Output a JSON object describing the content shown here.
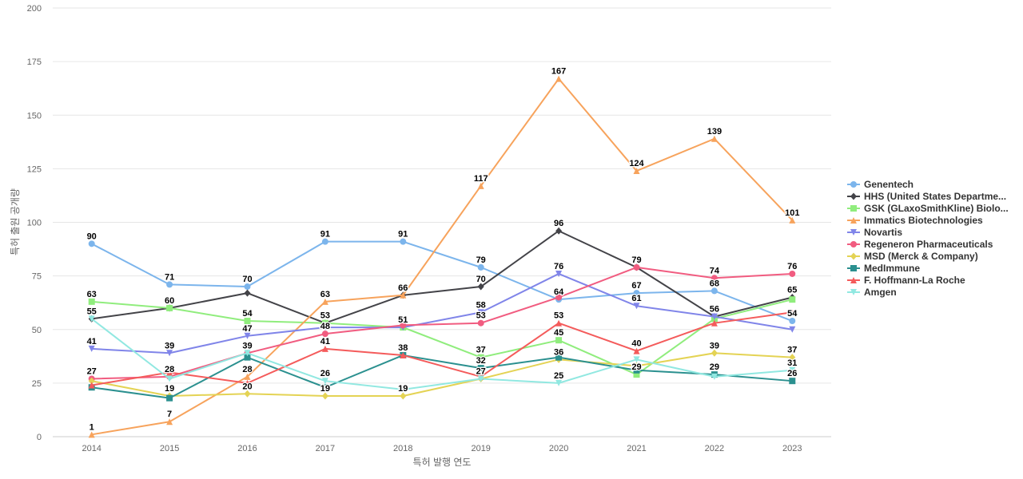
{
  "chart_data": {
    "type": "line",
    "title": "",
    "xlabel": "특허 발행 연도",
    "ylabel": "특허 출원 공개량",
    "ylim": [
      0,
      200
    ],
    "yticks": [
      0,
      25,
      50,
      75,
      100,
      125,
      150,
      175,
      200
    ],
    "grid": true,
    "legend": "right",
    "x": [
      "2014",
      "2015",
      "2016",
      "2017",
      "2018",
      "2019",
      "2020",
      "2021",
      "2022",
      "2023"
    ],
    "series": [
      {
        "name": "Genentech",
        "color": "#7cb5ec",
        "marker": "circle",
        "values": [
          90,
          71,
          70,
          91,
          91,
          79,
          64,
          67,
          68,
          54
        ]
      },
      {
        "name": "HHS (United States Departme...",
        "color": "#434348",
        "marker": "diamond",
        "values": [
          55,
          60,
          67,
          53,
          66,
          70,
          96,
          79,
          56,
          65
        ]
      },
      {
        "name": "GSK (GLaxoSmithKline) Biolo...",
        "color": "#90ed7d",
        "marker": "square",
        "values": [
          63,
          60,
          54,
          53,
          51,
          37,
          45,
          29,
          55,
          64
        ]
      },
      {
        "name": "Immatics Biotechnologies",
        "color": "#f7a35c",
        "marker": "triangle",
        "values": [
          1,
          7,
          28,
          63,
          66,
          117,
          167,
          124,
          139,
          101
        ]
      },
      {
        "name": "Novartis",
        "color": "#8085e9",
        "marker": "triangle-down",
        "values": [
          41,
          39,
          47,
          51,
          51,
          58,
          76,
          61,
          56,
          50
        ]
      },
      {
        "name": "Regeneron Pharmaceuticals",
        "color": "#f15c80",
        "marker": "circle",
        "values": [
          27,
          28,
          39,
          48,
          52,
          53,
          65,
          79,
          74,
          76
        ]
      },
      {
        "name": "MSD (Merck & Company)",
        "color": "#e4d354",
        "marker": "diamond",
        "values": [
          26,
          19,
          20,
          19,
          19,
          27,
          36,
          33,
          39,
          37
        ]
      },
      {
        "name": "MedImmune",
        "color": "#2b908f",
        "marker": "square",
        "values": [
          23,
          18,
          37,
          23,
          38,
          32,
          37,
          31,
          29,
          26
        ]
      },
      {
        "name": "F. Hoffmann-La Roche",
        "color": "#f45b5b",
        "marker": "triangle",
        "values": [
          24,
          30,
          25,
          41,
          38,
          28,
          53,
          40,
          53,
          58
        ]
      },
      {
        "name": "Amgen",
        "color": "#91e8e1",
        "marker": "triangle-down",
        "values": [
          55,
          27,
          39,
          26,
          22,
          27,
          25,
          36,
          28,
          31
        ]
      }
    ],
    "data_labels": [
      {
        "x": "2014",
        "value": 90,
        "text": "90"
      },
      {
        "x": "2014",
        "value": 63,
        "text": "63"
      },
      {
        "x": "2014",
        "value": 55,
        "text": "55"
      },
      {
        "x": "2014",
        "value": 41,
        "text": "41"
      },
      {
        "x": "2014",
        "value": 27,
        "text": "27"
      },
      {
        "x": "2014",
        "value": 1,
        "text": "1"
      },
      {
        "x": "2015",
        "value": 71,
        "text": "71"
      },
      {
        "x": "2015",
        "value": 60,
        "text": "60"
      },
      {
        "x": "2015",
        "value": 39,
        "text": "39"
      },
      {
        "x": "2015",
        "value": 28,
        "text": "28"
      },
      {
        "x": "2015",
        "value": 19,
        "text": "19"
      },
      {
        "x": "2015",
        "value": 7,
        "text": "7"
      },
      {
        "x": "2016",
        "value": 70,
        "text": "70"
      },
      {
        "x": "2016",
        "value": 54,
        "text": "54"
      },
      {
        "x": "2016",
        "value": 47,
        "text": "47"
      },
      {
        "x": "2016",
        "value": 39,
        "text": "39"
      },
      {
        "x": "2016",
        "value": 28,
        "text": "28"
      },
      {
        "x": "2016",
        "value": 20,
        "text": "20"
      },
      {
        "x": "2017",
        "value": 91,
        "text": "91"
      },
      {
        "x": "2017",
        "value": 63,
        "text": "63"
      },
      {
        "x": "2017",
        "value": 53,
        "text": "53"
      },
      {
        "x": "2017",
        "value": 48,
        "text": "48"
      },
      {
        "x": "2017",
        "value": 41,
        "text": "41"
      },
      {
        "x": "2017",
        "value": 26,
        "text": "26"
      },
      {
        "x": "2017",
        "value": 19,
        "text": "19"
      },
      {
        "x": "2018",
        "value": 91,
        "text": "91"
      },
      {
        "x": "2018",
        "value": 66,
        "text": "66"
      },
      {
        "x": "2018",
        "value": 51,
        "text": "51"
      },
      {
        "x": "2018",
        "value": 38,
        "text": "38"
      },
      {
        "x": "2018",
        "value": 19,
        "text": "19"
      },
      {
        "x": "2019",
        "value": 117,
        "text": "117"
      },
      {
        "x": "2019",
        "value": 79,
        "text": "79"
      },
      {
        "x": "2019",
        "value": 70,
        "text": "70"
      },
      {
        "x": "2019",
        "value": 58,
        "text": "58"
      },
      {
        "x": "2019",
        "value": 53,
        "text": "53"
      },
      {
        "x": "2019",
        "value": 37,
        "text": "37"
      },
      {
        "x": "2019",
        "value": 32,
        "text": "32"
      },
      {
        "x": "2019",
        "value": 27,
        "text": "27"
      },
      {
        "x": "2020",
        "value": 167,
        "text": "167"
      },
      {
        "x": "2020",
        "value": 96,
        "text": "96"
      },
      {
        "x": "2020",
        "value": 76,
        "text": "76"
      },
      {
        "x": "2020",
        "value": 64,
        "text": "64"
      },
      {
        "x": "2020",
        "value": 53,
        "text": "53"
      },
      {
        "x": "2020",
        "value": 45,
        "text": "45"
      },
      {
        "x": "2020",
        "value": 36,
        "text": "36"
      },
      {
        "x": "2020",
        "value": 25,
        "text": "25"
      },
      {
        "x": "2021",
        "value": 124,
        "text": "124"
      },
      {
        "x": "2021",
        "value": 79,
        "text": "79"
      },
      {
        "x": "2021",
        "value": 67,
        "text": "67"
      },
      {
        "x": "2021",
        "value": 61,
        "text": "61"
      },
      {
        "x": "2021",
        "value": 40,
        "text": "40"
      },
      {
        "x": "2021",
        "value": 29,
        "text": "29"
      },
      {
        "x": "2022",
        "value": 139,
        "text": "139"
      },
      {
        "x": "2022",
        "value": 74,
        "text": "74"
      },
      {
        "x": "2022",
        "value": 68,
        "text": "68"
      },
      {
        "x": "2022",
        "value": 56,
        "text": "56"
      },
      {
        "x": "2022",
        "value": 39,
        "text": "39"
      },
      {
        "x": "2022",
        "value": 29,
        "text": "29"
      },
      {
        "x": "2023",
        "value": 101,
        "text": "101"
      },
      {
        "x": "2023",
        "value": 76,
        "text": "76"
      },
      {
        "x": "2023",
        "value": 65,
        "text": "65"
      },
      {
        "x": "2023",
        "value": 54,
        "text": "54"
      },
      {
        "x": "2023",
        "value": 37,
        "text": "37"
      },
      {
        "x": "2023",
        "value": 31,
        "text": "31"
      },
      {
        "x": "2023",
        "value": 26,
        "text": "26"
      }
    ]
  }
}
